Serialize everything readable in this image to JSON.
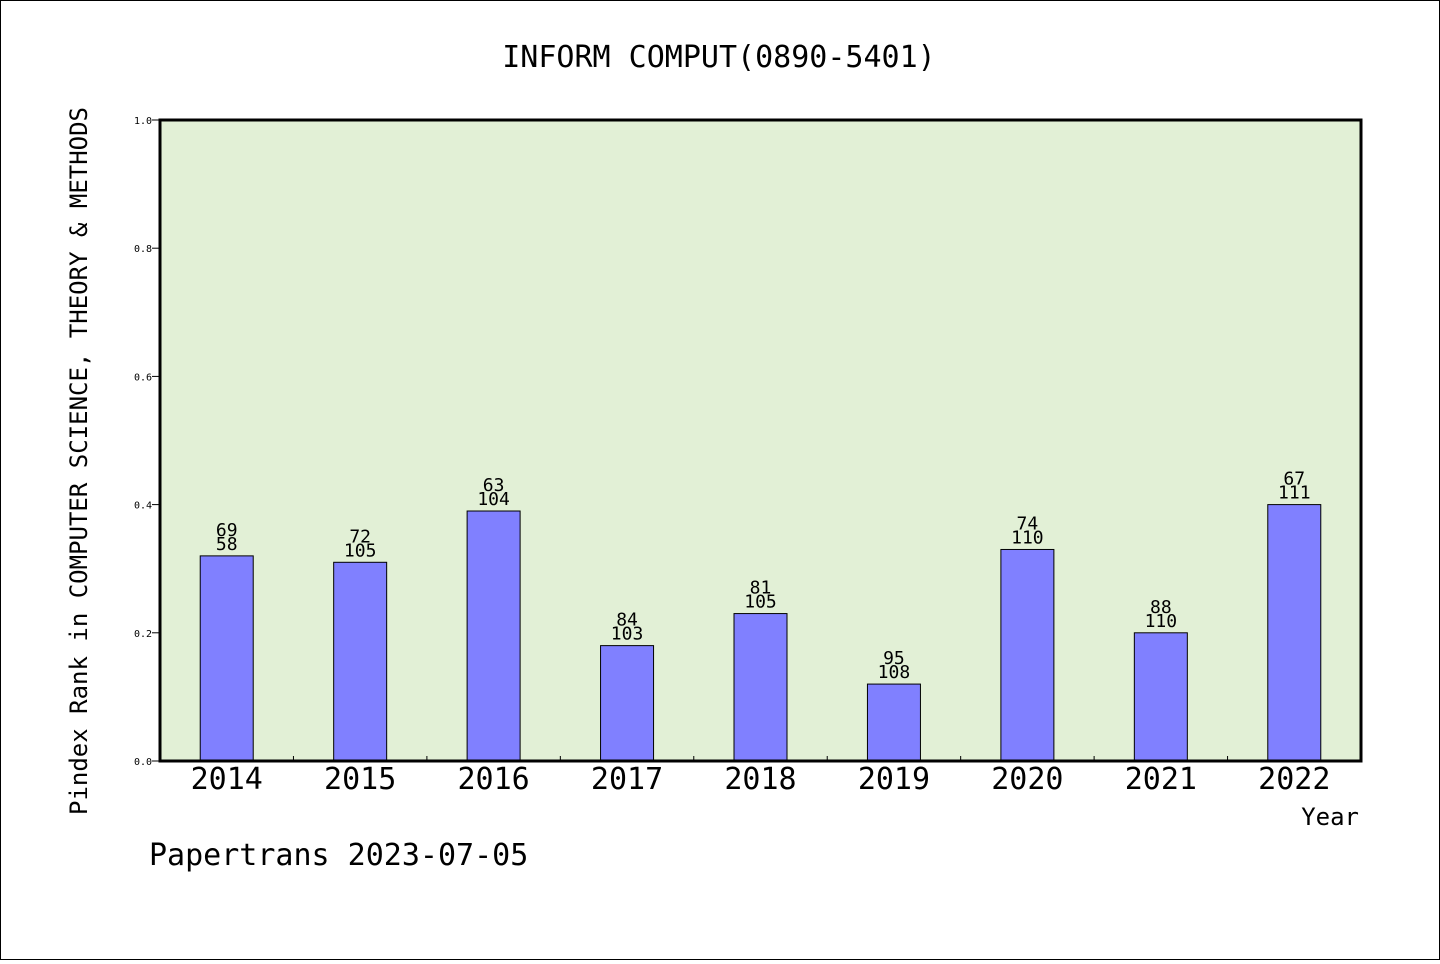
{
  "colors": {
    "plot_background": "#e2f0d6",
    "bar_fill": "#8080ff",
    "bar_stroke": "#000000"
  },
  "footer": "Papertrans 2023-07-05",
  "chart_data": {
    "type": "bar",
    "title": "INFORM COMPUT(0890-5401)",
    "xlabel": "Year",
    "ylabel": "Pindex Rank in COMPUTER SCIENCE, THEORY & METHODS",
    "categories": [
      "2014",
      "2015",
      "2016",
      "2017",
      "2018",
      "2019",
      "2020",
      "2021",
      "2022"
    ],
    "values": [
      0.32,
      0.31,
      0.39,
      0.18,
      0.23,
      0.12,
      0.33,
      0.2,
      0.4
    ],
    "label_top": [
      "69",
      "72",
      "63",
      "84",
      "81",
      "95",
      "74",
      "88",
      "67"
    ],
    "label_bottom": [
      "58",
      "105",
      "104",
      "103",
      "105",
      "108",
      "110",
      "110",
      "111"
    ],
    "ylim": [
      0,
      1.0
    ],
    "yticks": [
      "0.0",
      "0.2",
      "0.4",
      "0.6",
      "0.8",
      "1.0"
    ],
    "grid": false,
    "legend": "none"
  }
}
